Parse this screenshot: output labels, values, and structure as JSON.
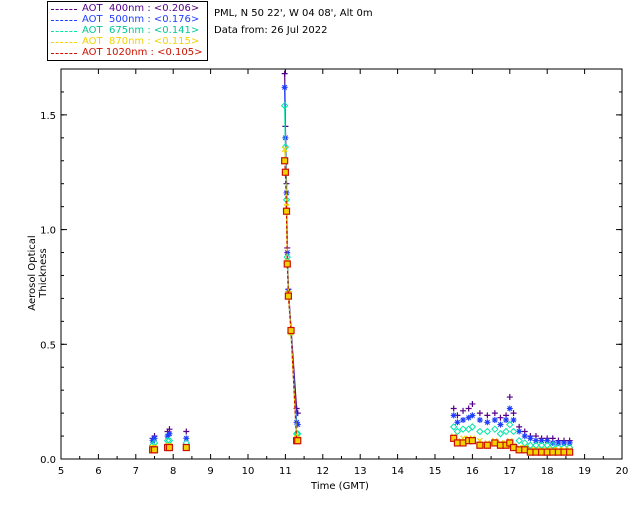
{
  "header": {
    "location": "PML, N 50 22', W 04 08', Alt 0m",
    "date": "Data from: 26 Jul 2022"
  },
  "legend": [
    {
      "label": "AOT  400nm : <0.206>",
      "color": "#550088"
    },
    {
      "label": "AOT  500nm : <0.176>",
      "color": "#1f3fff"
    },
    {
      "label": "AOT  675nm : <0.141>",
      "color": "#00e6a8"
    },
    {
      "label": "AOT  870nm : <0.115>",
      "color": "#f2d200"
    },
    {
      "label": "AOT 1020nm : <0.105>",
      "color": "#cc1100"
    }
  ],
  "chart_data": {
    "type": "scatter",
    "xlabel": "Time (GMT)",
    "ylabel": "Aerosol Optical Thickness",
    "xlim": [
      5,
      20
    ],
    "ylim": [
      0,
      1.7
    ],
    "xticks": [
      "5",
      "6",
      "7",
      "8",
      "9",
      "10",
      "11",
      "12",
      "13",
      "14",
      "15",
      "16",
      "17",
      "18",
      "19",
      "20"
    ],
    "yticks": [
      "0.0",
      "0.5",
      "1.0",
      "1.5"
    ],
    "x": [
      7.45,
      7.5,
      7.85,
      7.9,
      8.35,
      10.98,
      11.0,
      11.03,
      11.05,
      11.08,
      11.15,
      11.3,
      11.33,
      15.5,
      15.6,
      15.75,
      15.9,
      16.0,
      16.2,
      16.4,
      16.6,
      16.75,
      16.9,
      17.0,
      17.1,
      17.25,
      17.4,
      17.55,
      17.7,
      17.85,
      18.0,
      18.15,
      18.3,
      18.45,
      18.6
    ],
    "series": [
      {
        "name": "AOT  400nm : <0.206>",
        "values": [
          0.09,
          0.1,
          0.12,
          0.13,
          0.12,
          1.68,
          1.45,
          1.2,
          0.92,
          0.74,
          0.57,
          0.22,
          0.2,
          0.22,
          0.19,
          0.21,
          0.22,
          0.24,
          0.2,
          0.19,
          0.2,
          0.18,
          0.19,
          0.27,
          0.2,
          0.14,
          0.12,
          0.1,
          0.1,
          0.09,
          0.09,
          0.09,
          0.08,
          0.08,
          0.08
        ]
      },
      {
        "name": "AOT  500nm : <0.176>",
        "values": [
          0.08,
          0.09,
          0.1,
          0.11,
          0.09,
          1.62,
          1.4,
          1.16,
          0.9,
          0.73,
          0.56,
          0.16,
          0.15,
          0.19,
          0.16,
          0.17,
          0.18,
          0.19,
          0.17,
          0.16,
          0.17,
          0.15,
          0.17,
          0.22,
          0.17,
          0.12,
          0.1,
          0.09,
          0.08,
          0.08,
          0.08,
          0.07,
          0.07,
          0.07,
          0.07
        ]
      },
      {
        "name": "AOT  675nm : <0.141>",
        "values": [
          0.06,
          0.07,
          0.08,
          0.08,
          0.07,
          1.54,
          1.36,
          1.13,
          0.88,
          0.72,
          0.55,
          0.11,
          0.11,
          0.14,
          0.12,
          0.13,
          0.13,
          0.14,
          0.12,
          0.12,
          0.13,
          0.11,
          0.12,
          0.15,
          0.12,
          0.08,
          0.07,
          0.06,
          0.06,
          0.06,
          0.06,
          0.06,
          0.05,
          0.05,
          0.05
        ]
      },
      {
        "name": "AOT  870nm : <0.115>",
        "values": [
          0.05,
          0.05,
          0.06,
          0.06,
          0.05,
          1.35,
          1.3,
          1.1,
          0.86,
          0.72,
          0.55,
          0.09,
          0.09,
          0.1,
          0.08,
          0.09,
          0.09,
          0.09,
          0.08,
          0.07,
          0.08,
          0.07,
          0.07,
          0.08,
          0.06,
          0.05,
          0.05,
          0.04,
          0.04,
          0.04,
          0.04,
          0.04,
          0.04,
          0.04,
          0.04
        ]
      },
      {
        "name": "AOT 1020nm : <0.105>",
        "values": [
          0.04,
          0.04,
          0.05,
          0.05,
          0.05,
          1.3,
          1.25,
          1.08,
          0.85,
          0.71,
          0.56,
          0.08,
          0.08,
          0.09,
          0.07,
          0.07,
          0.08,
          0.08,
          0.06,
          0.06,
          0.07,
          0.06,
          0.06,
          0.07,
          0.05,
          0.04,
          0.04,
          0.03,
          0.03,
          0.03,
          0.03,
          0.03,
          0.03,
          0.03,
          0.03
        ]
      }
    ],
    "grid": false,
    "legend_position": "top-left"
  }
}
